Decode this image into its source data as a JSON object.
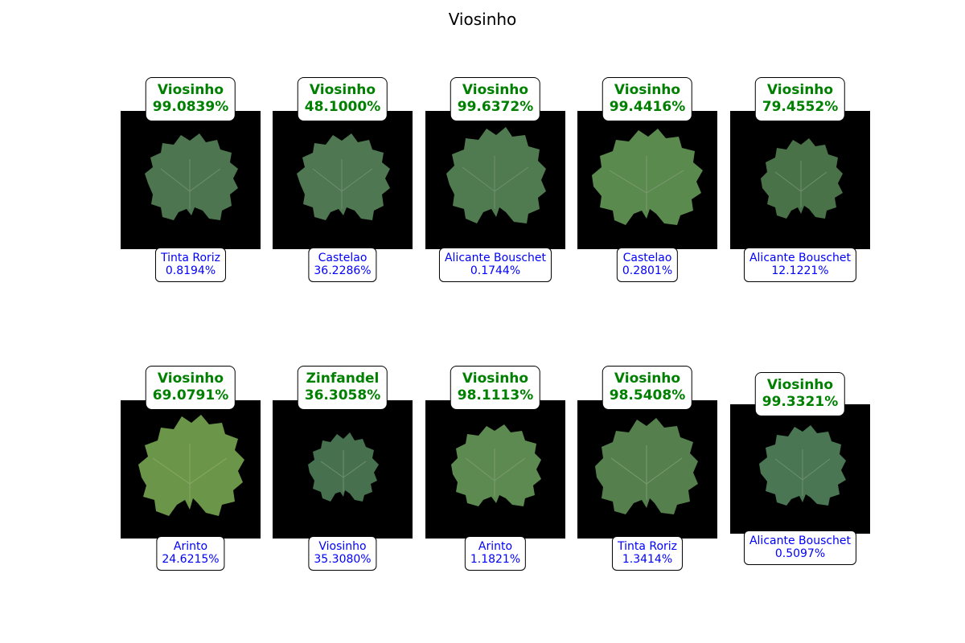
{
  "title": "Viosinho",
  "colors": {
    "prediction_text": "#008000",
    "alternative_text": "#0000ff",
    "panel_background": "#000000",
    "leaf_fill": "#4d7550"
  },
  "grid": [
    [
      {
        "pred_label": "Viosinho",
        "pred_prob": "99.0839%",
        "alt_label": "Tinta Roriz",
        "alt_prob": "0.8194%"
      },
      {
        "pred_label": "Viosinho",
        "pred_prob": "48.1000%",
        "alt_label": "Castelao",
        "alt_prob": "36.2286%"
      },
      {
        "pred_label": "Viosinho",
        "pred_prob": "99.6372%",
        "alt_label": "Alicante Bouschet",
        "alt_prob": "0.1744%"
      },
      {
        "pred_label": "Viosinho",
        "pred_prob": "99.4416%",
        "alt_label": "Castelao",
        "alt_prob": "0.2801%"
      },
      {
        "pred_label": "Viosinho",
        "pred_prob": "79.4552%",
        "alt_label": "Alicante Bouschet",
        "alt_prob": "12.1221%"
      }
    ],
    [
      {
        "pred_label": "Viosinho",
        "pred_prob": "69.0791%",
        "alt_label": "Arinto",
        "alt_prob": "24.6215%"
      },
      {
        "pred_label": "Zinfandel",
        "pred_prob": "36.3058%",
        "alt_label": "Viosinho",
        "alt_prob": "35.3080%"
      },
      {
        "pred_label": "Viosinho",
        "pred_prob": "98.1113%",
        "alt_label": "Arinto",
        "alt_prob": "1.1821%"
      },
      {
        "pred_label": "Viosinho",
        "pred_prob": "98.5408%",
        "alt_label": "Tinta Roriz",
        "alt_prob": "1.3414%"
      },
      {
        "pred_label": "Viosinho",
        "pred_prob": "99.3321%",
        "alt_label": "Alicante Bouschet",
        "alt_prob": "0.5097%"
      }
    ]
  ]
}
